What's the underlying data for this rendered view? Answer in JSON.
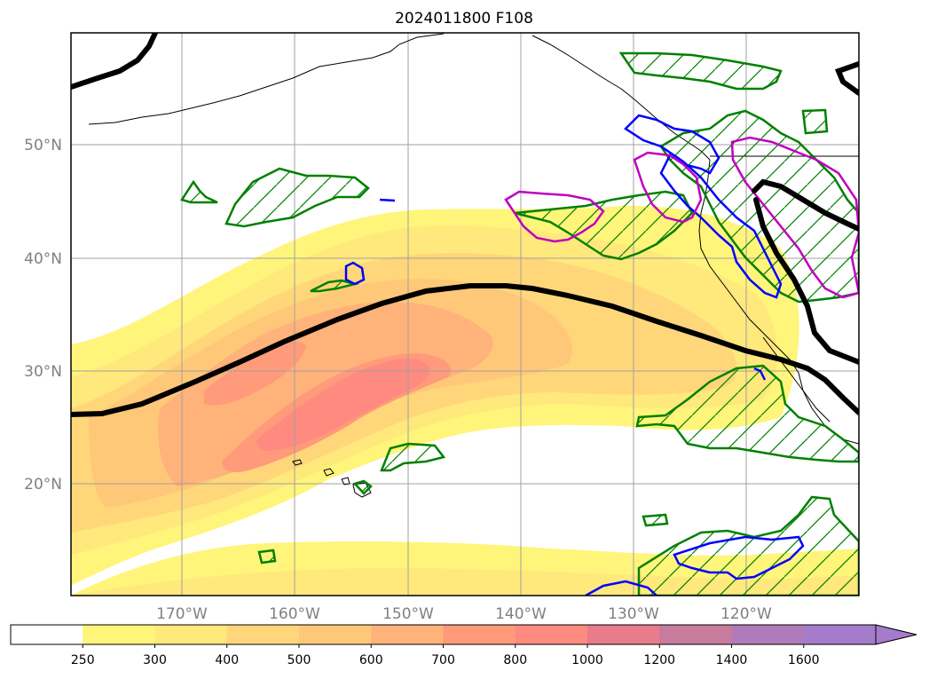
{
  "title": "2024011800 F108",
  "map": {
    "lat_labels": [
      "50°N",
      "40°N",
      "30°N",
      "20°N"
    ],
    "lon_labels": [
      "170°W",
      "160°W",
      "150°W",
      "140°W",
      "130°W",
      "120°W"
    ],
    "grid": true
  },
  "colorbar": {
    "ticks": [
      "250",
      "300",
      "400",
      "500",
      "600",
      "700",
      "800",
      "1000",
      "1200",
      "1400",
      "1600"
    ],
    "colors": [
      "#ffffff",
      "#fff57a",
      "#ffe87c",
      "#ffd77a",
      "#ffc878",
      "#ffb27a",
      "#ff9a7a",
      "#ff8a80",
      "#e87c8c",
      "#c77c9e",
      "#b07bba",
      "#a57bcc"
    ],
    "extend": "max"
  },
  "colors": {
    "green_contour": "#008000",
    "blue_contour": "#0000ff",
    "magenta_contour": "#c000c0",
    "jet_axis": "#000000"
  }
}
